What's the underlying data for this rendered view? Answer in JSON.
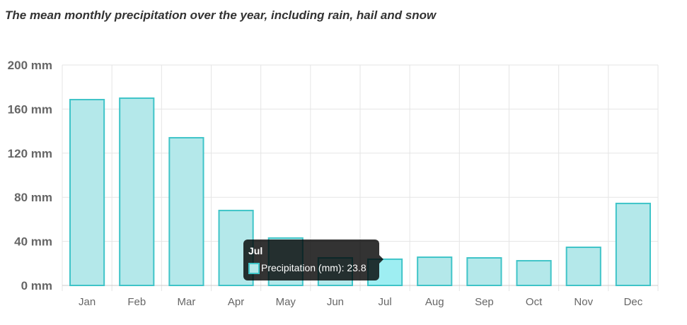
{
  "chart_data": {
    "type": "bar",
    "title": "The mean monthly precipitation over the year, including rain, hail and snow",
    "categories": [
      "Jan",
      "Feb",
      "Mar",
      "Apr",
      "May",
      "Jun",
      "Jul",
      "Aug",
      "Sep",
      "Oct",
      "Nov",
      "Dec"
    ],
    "series": [
      {
        "name": "Precipitation (mm)",
        "values": [
          168.6,
          169.9,
          134.0,
          68.0,
          43.0,
          25.0,
          23.8,
          25.6,
          25.0,
          22.4,
          34.6,
          74.4
        ]
      }
    ],
    "ylim": [
      0,
      200
    ],
    "yticks": [
      0,
      40,
      80,
      120,
      160,
      200
    ],
    "ytick_labels": [
      "0 mm",
      "40 mm",
      "80 mm",
      "120 mm",
      "160 mm",
      "200 mm"
    ],
    "grid": true,
    "colors": {
      "fill": "#b4e8ea",
      "stroke": "#3fc4c8",
      "hover_fill": "#9eeef2"
    }
  },
  "tooltip": {
    "title": "Jul",
    "label": "Precipitation (mm): 23.8"
  }
}
